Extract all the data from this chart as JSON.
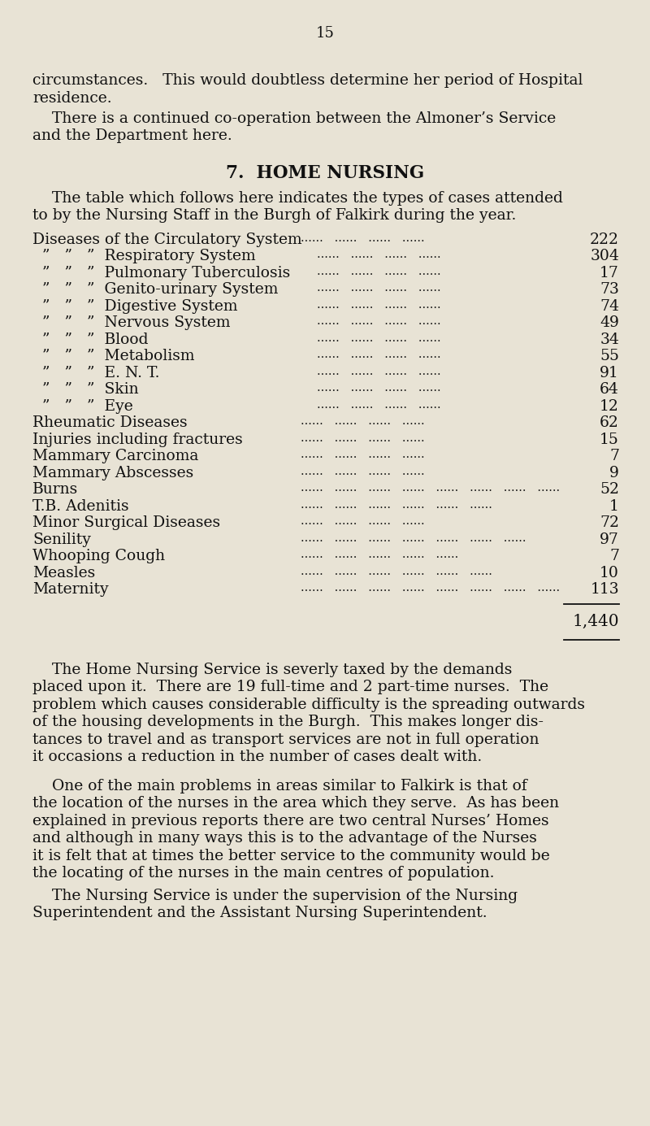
{
  "bg_color": "#e8e3d5",
  "text_color": "#111111",
  "page_number": "15",
  "para1_lines": [
    "circumstances.   This would doubtless determine her period of Hospital",
    "residence."
  ],
  "para2_lines": [
    "    There is a continued co-operation between the Almoner’s Service",
    "and the Department here."
  ],
  "section_title": "7.  HOME NURSING",
  "intro_lines": [
    "    The table which follows here indicates the types of cases attended",
    "to by the Nursing Staff in the Burgh of Falkirk during the year."
  ],
  "table_rows": [
    {
      "label": "Diseases of the Circulatory System",
      "prefix": "",
      "dots": "......   ......   ......   ......",
      "value": "222"
    },
    {
      "label": "Respiratory System",
      "prefix": "  ”   ”   ”  ",
      "dots": "......   ......   ......   ......",
      "value": "304"
    },
    {
      "label": "Pulmonary Tuberculosis",
      "prefix": "  ”   ”   ”  ",
      "dots": "......   ......   ......   ......",
      "value": "17"
    },
    {
      "label": "Genito-urinary System",
      "prefix": "  ”   ”   ”  ",
      "dots": "......   ......   ......   ......",
      "value": "73"
    },
    {
      "label": "Digestive System",
      "prefix": "  ”   ”   ”  ",
      "dots": "......   ......   ......   ......",
      "value": "74"
    },
    {
      "label": "Nervous System",
      "prefix": "  ”   ”   ”  ",
      "dots": "......   ......   ......   ......",
      "value": "49"
    },
    {
      "label": "Blood",
      "prefix": "  ”   ”   ”  ",
      "dots": "......   ......   ......   ......",
      "value": "34"
    },
    {
      "label": "Metabolism",
      "prefix": "  ”   ”   ”  ",
      "dots": "......   ......   ......   ......",
      "value": "55"
    },
    {
      "label": "E. N. T.",
      "prefix": "  ”   ”   ”  ",
      "dots": "......   ......   ......   ......",
      "value": "91"
    },
    {
      "label": "Skin",
      "prefix": "  ”   ”   ”  ",
      "dots": "......   ......   ......   ......",
      "value": "64"
    },
    {
      "label": "Eye",
      "prefix": "  ”   ”   ”  ",
      "dots": "......   ......   ......   ......",
      "value": "12"
    },
    {
      "label": "Rheumatic Diseases",
      "prefix": "",
      "dots": "......   ......   ......   ......",
      "value": "62"
    },
    {
      "label": "Injuries including fractures",
      "prefix": "",
      "dots": "......   ......   ......   ......",
      "value": "15"
    },
    {
      "label": "Mammary Carcinoma",
      "prefix": "",
      "dots": "......   ......   ......   ......",
      "value": "7"
    },
    {
      "label": "Mammary Abscesses",
      "prefix": "",
      "dots": "......   ......   ......   ......",
      "value": "9"
    },
    {
      "label": "Burns",
      "prefix": "",
      "dots": "......   ......   ......   ......   ......   ......   ......   ......",
      "value": "52"
    },
    {
      "label": "T.B. Adenitis",
      "prefix": "",
      "dots": "......   ......   ......   ......   ......   ......",
      "value": "1"
    },
    {
      "label": "Minor Surgical Diseases",
      "prefix": "",
      "dots": "......   ......   ......   ......",
      "value": "72"
    },
    {
      "label": "Senility",
      "prefix": "",
      "dots": "......   ......   ......   ......   ......   ......   ......",
      "value": "97"
    },
    {
      "label": "Whooping Cough",
      "prefix": "",
      "dots": "......   ......   ......   ......   ......",
      "value": "7"
    },
    {
      "label": "Measles",
      "prefix": "",
      "dots": "......   ......   ......   ......   ......   ......",
      "value": "10"
    },
    {
      "label": "Maternity",
      "prefix": "",
      "dots": "......   ......   ......   ......   ......   ......   ......   ......",
      "value": "113"
    }
  ],
  "total": "1,440",
  "para3_lines": [
    "    The Home Nursing Service is severly taxed by the demands",
    "placed upon it.  There are 19 full-time and 2 part-time nurses.  The",
    "problem which causes considerable difficulty is the spreading outwards",
    "of the housing developments in the Burgh.  This makes longer dis-",
    "tances to travel and as transport services are not in full operation",
    "it occasions a reduction in the number of cases dealt with."
  ],
  "para4_lines": [
    "    One of the main problems in areas similar to Falkirk is that of",
    "the location of the nurses in the area which they serve.  As has been",
    "explained in previous reports there are two central Nurses’ Homes",
    "and although in many ways this is to the advantage of the Nurses",
    "it is felt that at times the better service to the community would be",
    "the locating of the nurses in the main centres of population."
  ],
  "para5_lines": [
    "    The Nursing Service is under the supervision of the Nursing",
    "Superintendent and the Assistant Nursing Superintendent."
  ]
}
